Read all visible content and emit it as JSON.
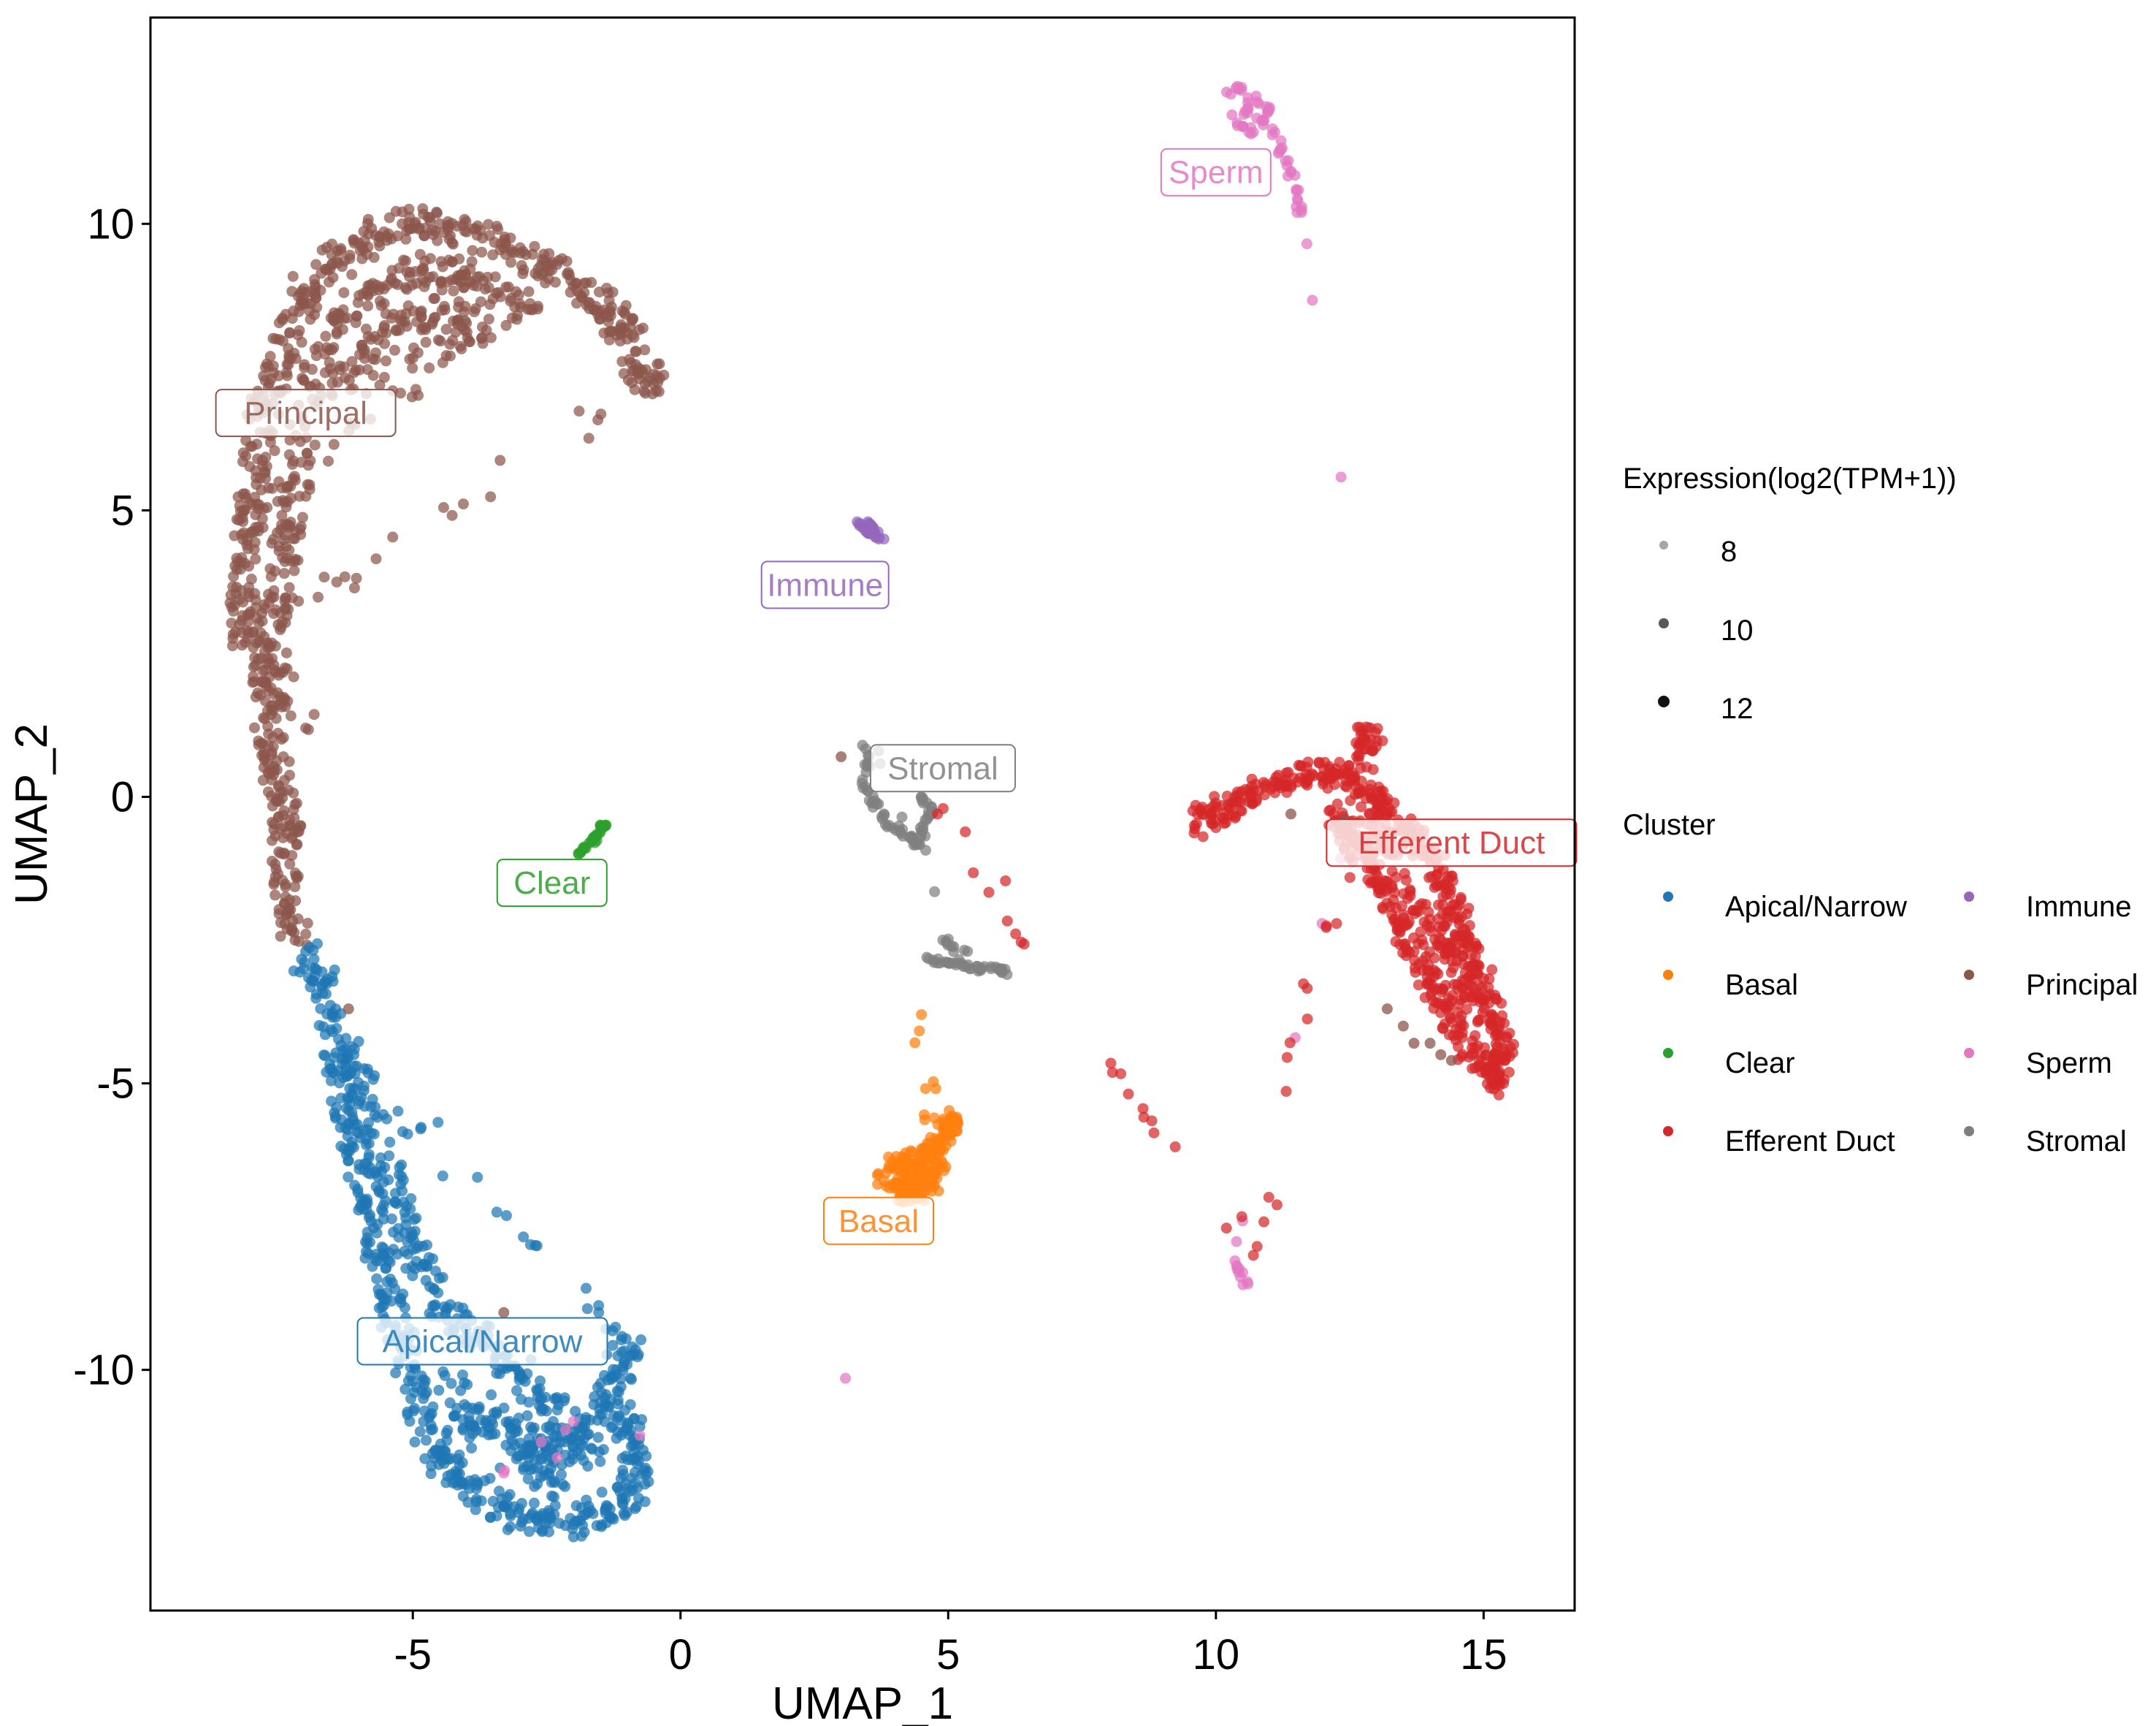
{
  "chart_data": {
    "type": "scatter",
    "xlabel": "UMAP_1",
    "ylabel": "UMAP_2",
    "xlim": [
      -9.9,
      16.7
    ],
    "ylim": [
      -14.2,
      13.6
    ],
    "x_ticks": [
      -5,
      0,
      5,
      10,
      15
    ],
    "x_tick_labels": [
      "-5",
      "0",
      "5",
      "10",
      "15"
    ],
    "y_ticks": [
      -10,
      -5,
      0,
      5,
      10
    ],
    "y_tick_labels": [
      "-10",
      "-5",
      "0",
      "5",
      "10"
    ],
    "grid": false,
    "legend_position": "right",
    "size_legend": {
      "title": "Expression(log2(TPM+1))",
      "levels": [
        {
          "label": "8",
          "value": 8
        },
        {
          "label": "10",
          "value": 10
        },
        {
          "label": "12",
          "value": 12
        }
      ]
    },
    "color_legend": {
      "title": "Cluster",
      "entries": [
        {
          "label": "Apical/Narrow",
          "color": "#1f77b4"
        },
        {
          "label": "Basal",
          "color": "#ff7f0e"
        },
        {
          "label": "Clear",
          "color": "#2ca02c"
        },
        {
          "label": "Efferent Duct",
          "color": "#d62728"
        },
        {
          "label": "Immune",
          "color": "#9467bd"
        },
        {
          "label": "Principal",
          "color": "#8c564b"
        },
        {
          "label": "Sperm",
          "color": "#e377c2"
        },
        {
          "label": "Stromal",
          "color": "#7f7f7f"
        }
      ]
    },
    "clusters": [
      {
        "name": "Principal",
        "color": "#8c564b",
        "label": "Principal",
        "label_pos": [
          -7.0,
          6.7
        ],
        "points": [
          [
            -7.2,
            -2.5
          ],
          [
            -7.3,
            -1.8
          ],
          [
            -7.4,
            -1.0
          ],
          [
            -7.3,
            -0.4
          ],
          [
            -7.5,
            0.2
          ],
          [
            -7.7,
            0.9
          ],
          [
            -7.6,
            1.6
          ],
          [
            -7.8,
            2.2
          ],
          [
            -8.1,
            2.9
          ],
          [
            -8.2,
            3.6
          ],
          [
            -8.1,
            4.4
          ],
          [
            -8.0,
            5.1
          ],
          [
            -7.9,
            5.9
          ],
          [
            -7.8,
            6.7
          ],
          [
            -7.6,
            7.4
          ],
          [
            -7.3,
            8.1
          ],
          [
            -7.0,
            8.8
          ],
          [
            -6.5,
            9.3
          ],
          [
            -5.9,
            9.7
          ],
          [
            -5.2,
            10.0
          ],
          [
            -4.5,
            10.0
          ],
          [
            -3.8,
            9.8
          ],
          [
            -3.1,
            9.5
          ],
          [
            -2.4,
            9.2
          ],
          [
            -1.8,
            8.8
          ],
          [
            -1.3,
            8.4
          ],
          [
            -1.0,
            8.1
          ],
          [
            -0.7,
            7.4
          ],
          [
            -0.5,
            7.2
          ],
          [
            -7.6,
            3.2
          ],
          [
            -7.3,
            4.7
          ],
          [
            -7.1,
            6.2
          ],
          [
            -6.8,
            7.7
          ],
          [
            -6.3,
            8.5
          ],
          [
            -5.6,
            8.9
          ],
          [
            -4.8,
            9.2
          ],
          [
            -4.1,
            9.1
          ],
          [
            -3.4,
            8.8
          ],
          [
            -2.8,
            8.5
          ],
          [
            -6.5,
            7.0
          ],
          [
            -5.9,
            7.8
          ],
          [
            -5.2,
            8.3
          ],
          [
            -4.4,
            8.5
          ],
          [
            -3.7,
            8.2
          ],
          [
            -7.5,
            5.5
          ],
          [
            -7.4,
            3.9
          ],
          [
            -7.7,
            2.6
          ],
          [
            -7.0,
            1.2
          ]
        ]
      },
      {
        "name": "Apical/Narrow",
        "color": "#1f77b4",
        "label": "Apical/Narrow",
        "label_pos": [
          -3.7,
          -9.5
        ],
        "points": [
          [
            -7.0,
            -2.7
          ],
          [
            -6.7,
            -3.3
          ],
          [
            -6.5,
            -4.1
          ],
          [
            -6.3,
            -4.9
          ],
          [
            -6.2,
            -5.7
          ],
          [
            -6.0,
            -6.5
          ],
          [
            -5.8,
            -7.3
          ],
          [
            -5.6,
            -8.1
          ],
          [
            -5.4,
            -8.8
          ],
          [
            -5.2,
            -9.5
          ],
          [
            -5.0,
            -10.2
          ],
          [
            -4.8,
            -10.9
          ],
          [
            -4.5,
            -11.5
          ],
          [
            -4.0,
            -12.0
          ],
          [
            -3.4,
            -12.4
          ],
          [
            -2.7,
            -12.6
          ],
          [
            -2.0,
            -12.7
          ],
          [
            -1.4,
            -12.5
          ],
          [
            -0.9,
            -12.1
          ],
          [
            -0.8,
            -11.5
          ],
          [
            -1.0,
            -11.0
          ],
          [
            -1.4,
            -10.6
          ],
          [
            -1.2,
            -10.0
          ],
          [
            -0.9,
            -9.6
          ],
          [
            -6.1,
            -4.5
          ],
          [
            -5.9,
            -5.4
          ],
          [
            -5.6,
            -6.3
          ],
          [
            -5.3,
            -7.1
          ],
          [
            -5.0,
            -7.9
          ],
          [
            -4.6,
            -8.6
          ],
          [
            -4.1,
            -9.2
          ],
          [
            -3.5,
            -9.6
          ],
          [
            -2.9,
            -10.2
          ],
          [
            -2.3,
            -10.7
          ],
          [
            -1.8,
            -11.2
          ],
          [
            -3.0,
            -11.5
          ],
          [
            -2.2,
            -12.0
          ],
          [
            -4.2,
            -10.8
          ],
          [
            -3.6,
            -11.0
          ],
          [
            -1.5,
            -11.6
          ],
          [
            -2.6,
            -11.2
          ],
          [
            -4.4,
            -10.1
          ]
        ]
      },
      {
        "name": "Clear",
        "color": "#2ca02c",
        "label": "Clear",
        "label_pos": [
          -2.4,
          -1.5
        ],
        "points": [
          [
            -1.9,
            -1.0
          ],
          [
            -1.8,
            -0.9
          ],
          [
            -1.7,
            -0.8
          ],
          [
            -1.6,
            -0.7
          ],
          [
            -1.5,
            -0.6
          ],
          [
            -1.4,
            -0.5
          ],
          [
            -1.5,
            -0.5
          ],
          [
            -1.6,
            -0.8
          ]
        ]
      },
      {
        "name": "Immune",
        "color": "#9467bd",
        "label": "Immune",
        "label_pos": [
          2.7,
          3.7
        ],
        "points": [
          [
            3.3,
            4.8
          ],
          [
            3.4,
            4.7
          ],
          [
            3.5,
            4.6
          ],
          [
            3.6,
            4.6
          ],
          [
            3.7,
            4.5
          ],
          [
            3.6,
            4.7
          ],
          [
            3.5,
            4.8
          ],
          [
            3.8,
            4.5
          ]
        ]
      },
      {
        "name": "Sperm",
        "color": "#e377c2",
        "label": "Sperm",
        "label_pos": [
          10.0,
          10.9
        ],
        "points": [
          [
            10.2,
            12.3
          ],
          [
            10.4,
            12.4
          ],
          [
            10.6,
            12.2
          ],
          [
            10.8,
            12.1
          ],
          [
            11.0,
            12.0
          ],
          [
            10.9,
            11.8
          ],
          [
            10.7,
            11.6
          ],
          [
            10.5,
            11.7
          ],
          [
            10.3,
            11.9
          ],
          [
            10.6,
            12.0
          ],
          [
            11.1,
            11.6
          ],
          [
            11.2,
            11.3
          ],
          [
            11.3,
            11.1
          ],
          [
            11.4,
            10.9
          ],
          [
            11.5,
            10.6
          ],
          [
            11.5,
            10.3
          ],
          [
            11.6,
            10.2
          ],
          [
            12.9,
            1.2
          ],
          [
            10.5,
            -7.4
          ],
          [
            10.4,
            -8.2
          ],
          [
            10.6,
            -8.5
          ],
          [
            10.5,
            -8.3
          ],
          [
            -3.3,
            -11.8
          ],
          [
            -2.0,
            -10.9
          ]
        ]
      },
      {
        "name": "Stromal",
        "color": "#7f7f7f",
        "label": "Stromal",
        "label_pos": [
          4.9,
          0.5
        ],
        "points": [
          [
            3.4,
            0.9
          ],
          [
            3.5,
            0.6
          ],
          [
            3.4,
            0.3
          ],
          [
            3.5,
            0.1
          ],
          [
            3.6,
            -0.1
          ],
          [
            3.8,
            -0.3
          ],
          [
            3.9,
            -0.5
          ],
          [
            4.1,
            -0.6
          ],
          [
            4.3,
            -0.7
          ],
          [
            4.4,
            -0.8
          ],
          [
            4.5,
            -0.6
          ],
          [
            4.6,
            -0.4
          ],
          [
            4.7,
            -0.3
          ],
          [
            4.6,
            -0.1
          ],
          [
            4.5,
            0.0
          ],
          [
            4.6,
            -2.8
          ],
          [
            4.8,
            -2.9
          ],
          [
            5.0,
            -2.9
          ],
          [
            5.2,
            -2.9
          ],
          [
            5.4,
            -3.0
          ],
          [
            5.6,
            -3.0
          ],
          [
            5.8,
            -3.0
          ],
          [
            6.0,
            -3.0
          ],
          [
            6.1,
            -3.1
          ],
          [
            4.9,
            -2.5
          ],
          [
            5.1,
            -2.7
          ],
          [
            3.7,
            0.8
          ]
        ]
      },
      {
        "name": "Efferent Duct",
        "color": "#d62728",
        "label": "Efferent Duct",
        "label_pos": [
          14.4,
          -0.8
        ],
        "points": [
          [
            9.6,
            -0.5
          ],
          [
            9.9,
            -0.3
          ],
          [
            10.3,
            -0.1
          ],
          [
            10.8,
            0.1
          ],
          [
            11.3,
            0.3
          ],
          [
            11.8,
            0.4
          ],
          [
            12.2,
            0.4
          ],
          [
            12.6,
            0.2
          ],
          [
            13.0,
            -0.1
          ],
          [
            13.4,
            -0.4
          ],
          [
            13.7,
            -0.7
          ],
          [
            14.0,
            -1.1
          ],
          [
            14.3,
            -1.6
          ],
          [
            14.5,
            -2.1
          ],
          [
            14.7,
            -2.6
          ],
          [
            14.9,
            -3.1
          ],
          [
            15.1,
            -3.6
          ],
          [
            15.3,
            -4.1
          ],
          [
            15.4,
            -4.6
          ],
          [
            15.2,
            -5.0
          ],
          [
            14.9,
            -4.7
          ],
          [
            14.6,
            -4.2
          ],
          [
            14.3,
            -3.7
          ],
          [
            14.0,
            -3.2
          ],
          [
            13.7,
            -2.7
          ],
          [
            13.4,
            -2.2
          ],
          [
            13.1,
            -1.6
          ],
          [
            12.8,
            -1.1
          ],
          [
            12.5,
            -0.7
          ],
          [
            12.2,
            -0.3
          ],
          [
            13.8,
            -1.9
          ],
          [
            14.2,
            -2.5
          ],
          [
            14.6,
            -3.2
          ],
          [
            14.9,
            -3.9
          ],
          [
            13.3,
            -1.0
          ],
          [
            12.9,
            -0.5
          ],
          [
            12.8,
            1.0
          ],
          [
            12.9,
            1.0
          ],
          [
            10.7,
            -8.0
          ],
          [
            4.8,
            -0.3
          ]
        ]
      },
      {
        "name": "Basal",
        "color": "#ff7f0e",
        "label": "Basal",
        "label_pos": [
          3.7,
          -7.4
        ],
        "points": [
          [
            3.8,
            -6.7
          ],
          [
            4.0,
            -6.5
          ],
          [
            4.2,
            -6.3
          ],
          [
            4.4,
            -6.4
          ],
          [
            4.6,
            -6.2
          ],
          [
            4.8,
            -6.0
          ],
          [
            5.0,
            -5.8
          ],
          [
            5.1,
            -5.6
          ],
          [
            4.9,
            -6.4
          ],
          [
            4.6,
            -6.6
          ],
          [
            4.3,
            -6.7
          ],
          [
            4.1,
            -6.9
          ],
          [
            4.4,
            -6.9
          ],
          [
            4.7,
            -6.8
          ],
          [
            4.5,
            -3.8
          ]
        ]
      }
    ],
    "brown_extras": [
      [
        13.2,
        -3.7
      ],
      [
        13.5,
        -4.0
      ],
      [
        13.7,
        -4.3
      ],
      [
        14.0,
        -4.3
      ],
      [
        14.2,
        -4.5
      ],
      [
        14.4,
        -4.6
      ],
      [
        11.4,
        -0.3
      ],
      [
        12.4,
        -0.4
      ],
      [
        3.0,
        0.7
      ],
      [
        -3.3,
        -9.0
      ],
      [
        -6.2,
        -3.7
      ]
    ]
  }
}
